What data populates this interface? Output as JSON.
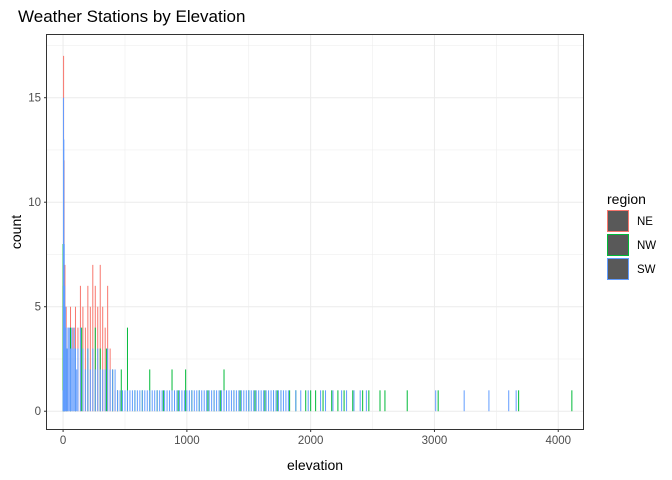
{
  "chart_data": {
    "type": "bar",
    "subtype": "histogram",
    "title": "Weather Stations by Elevation",
    "xlabel": "elevation",
    "ylabel": "count",
    "xlim": [
      -130,
      4200
    ],
    "ylim": [
      -0.85,
      18.0
    ],
    "x_ticks": [
      0,
      1000,
      2000,
      3000,
      4000
    ],
    "y_ticks": [
      0,
      5,
      10,
      15
    ],
    "grid": true,
    "fill": "none",
    "legend": {
      "title": "region",
      "position": "right"
    },
    "colors": {
      "NE": "#F8766D",
      "NW": "#00BA38",
      "SW": "#619CFF"
    },
    "series": [
      {
        "name": "NE",
        "color": "#F8766D",
        "points": [
          [
            0,
            6
          ],
          [
            4,
            17
          ],
          [
            8,
            12
          ],
          [
            15,
            7
          ],
          [
            25,
            5
          ],
          [
            40,
            4
          ],
          [
            60,
            5
          ],
          [
            80,
            4
          ],
          [
            100,
            5
          ],
          [
            120,
            4
          ],
          [
            140,
            6
          ],
          [
            160,
            5
          ],
          [
            180,
            4
          ],
          [
            200,
            6
          ],
          [
            220,
            5
          ],
          [
            240,
            7
          ],
          [
            260,
            6
          ],
          [
            280,
            5
          ],
          [
            300,
            7
          ],
          [
            320,
            5
          ],
          [
            340,
            4
          ],
          [
            360,
            6
          ],
          [
            380,
            3
          ],
          [
            400,
            2
          ],
          [
            420,
            1
          ],
          [
            440,
            1
          ]
        ]
      },
      {
        "name": "NW",
        "color": "#00BA38",
        "points": [
          [
            0,
            8
          ],
          [
            5,
            5
          ],
          [
            10,
            4
          ],
          [
            30,
            3
          ],
          [
            60,
            4
          ],
          [
            100,
            3
          ],
          [
            150,
            4
          ],
          [
            200,
            3
          ],
          [
            260,
            4
          ],
          [
            300,
            3
          ],
          [
            350,
            3
          ],
          [
            400,
            2
          ],
          [
            440,
            1
          ],
          [
            470,
            2
          ],
          [
            520,
            4
          ],
          [
            580,
            1
          ],
          [
            640,
            1
          ],
          [
            700,
            2
          ],
          [
            760,
            1
          ],
          [
            810,
            1
          ],
          [
            880,
            2
          ],
          [
            930,
            1
          ],
          [
            990,
            2
          ],
          [
            1040,
            1
          ],
          [
            1100,
            1
          ],
          [
            1170,
            1
          ],
          [
            1220,
            1
          ],
          [
            1270,
            1
          ],
          [
            1300,
            2
          ],
          [
            1380,
            1
          ],
          [
            1430,
            1
          ],
          [
            1500,
            1
          ],
          [
            1550,
            1
          ],
          [
            1630,
            1
          ],
          [
            1700,
            1
          ],
          [
            1730,
            1
          ],
          [
            1760,
            1
          ],
          [
            1830,
            1
          ],
          [
            1880,
            1
          ],
          [
            1960,
            1
          ],
          [
            2000,
            1
          ],
          [
            2040,
            1
          ],
          [
            2100,
            1
          ],
          [
            2170,
            1
          ],
          [
            2220,
            1
          ],
          [
            2270,
            1
          ],
          [
            2340,
            1
          ],
          [
            2420,
            1
          ],
          [
            2470,
            1
          ],
          [
            2560,
            1
          ],
          [
            2600,
            1
          ],
          [
            2780,
            1
          ],
          [
            3030,
            1
          ],
          [
            3680,
            1
          ],
          [
            4110,
            1
          ]
        ]
      },
      {
        "name": "SW",
        "color": "#619CFF",
        "points": [
          [
            0,
            1
          ],
          [
            3,
            15
          ],
          [
            6,
            13
          ],
          [
            9,
            8
          ],
          [
            13,
            6
          ],
          [
            18,
            5
          ],
          [
            24,
            4
          ],
          [
            32,
            3
          ],
          [
            40,
            4
          ],
          [
            50,
            4
          ],
          [
            60,
            3
          ],
          [
            70,
            4
          ],
          [
            80,
            3
          ],
          [
            90,
            4
          ],
          [
            100,
            3
          ],
          [
            110,
            2
          ],
          [
            120,
            3
          ],
          [
            140,
            4
          ],
          [
            160,
            3
          ],
          [
            180,
            2
          ],
          [
            200,
            3
          ],
          [
            220,
            2
          ],
          [
            240,
            3
          ],
          [
            260,
            2
          ],
          [
            280,
            3
          ],
          [
            300,
            2
          ],
          [
            320,
            2
          ],
          [
            340,
            2
          ],
          [
            360,
            3
          ],
          [
            380,
            2
          ],
          [
            400,
            2
          ],
          [
            420,
            2
          ],
          [
            440,
            1
          ],
          [
            460,
            1
          ],
          [
            480,
            1
          ],
          [
            500,
            1
          ],
          [
            520,
            1
          ],
          [
            540,
            1
          ],
          [
            560,
            1
          ],
          [
            580,
            1
          ],
          [
            600,
            1
          ],
          [
            620,
            1
          ],
          [
            640,
            1
          ],
          [
            660,
            1
          ],
          [
            680,
            1
          ],
          [
            700,
            1
          ],
          [
            720,
            1
          ],
          [
            740,
            1
          ],
          [
            760,
            1
          ],
          [
            780,
            1
          ],
          [
            800,
            1
          ],
          [
            820,
            1
          ],
          [
            840,
            1
          ],
          [
            860,
            1
          ],
          [
            880,
            1
          ],
          [
            900,
            1
          ],
          [
            920,
            1
          ],
          [
            940,
            1
          ],
          [
            960,
            1
          ],
          [
            980,
            1
          ],
          [
            1000,
            1
          ],
          [
            1020,
            1
          ],
          [
            1040,
            1
          ],
          [
            1060,
            1
          ],
          [
            1080,
            1
          ],
          [
            1100,
            1
          ],
          [
            1120,
            1
          ],
          [
            1140,
            1
          ],
          [
            1160,
            1
          ],
          [
            1180,
            1
          ],
          [
            1200,
            1
          ],
          [
            1220,
            1
          ],
          [
            1240,
            1
          ],
          [
            1260,
            1
          ],
          [
            1280,
            1
          ],
          [
            1300,
            1
          ],
          [
            1320,
            1
          ],
          [
            1340,
            1
          ],
          [
            1360,
            1
          ],
          [
            1380,
            1
          ],
          [
            1400,
            1
          ],
          [
            1420,
            1
          ],
          [
            1440,
            1
          ],
          [
            1460,
            1
          ],
          [
            1480,
            1
          ],
          [
            1500,
            1
          ],
          [
            1520,
            1
          ],
          [
            1540,
            1
          ],
          [
            1560,
            1
          ],
          [
            1580,
            1
          ],
          [
            1600,
            1
          ],
          [
            1620,
            1
          ],
          [
            1640,
            1
          ],
          [
            1660,
            1
          ],
          [
            1680,
            1
          ],
          [
            1700,
            1
          ],
          [
            1720,
            1
          ],
          [
            1740,
            1
          ],
          [
            1760,
            1
          ],
          [
            1780,
            1
          ],
          [
            1800,
            1
          ],
          [
            1820,
            1
          ],
          [
            1880,
            1
          ],
          [
            1920,
            1
          ],
          [
            1980,
            1
          ],
          [
            2080,
            1
          ],
          [
            2120,
            1
          ],
          [
            2180,
            1
          ],
          [
            2250,
            1
          ],
          [
            2290,
            1
          ],
          [
            2350,
            1
          ],
          [
            2400,
            1
          ],
          [
            2450,
            1
          ],
          [
            3010,
            1
          ],
          [
            3240,
            1
          ],
          [
            3440,
            1
          ],
          [
            3600,
            1
          ],
          [
            3660,
            1
          ]
        ]
      }
    ]
  }
}
